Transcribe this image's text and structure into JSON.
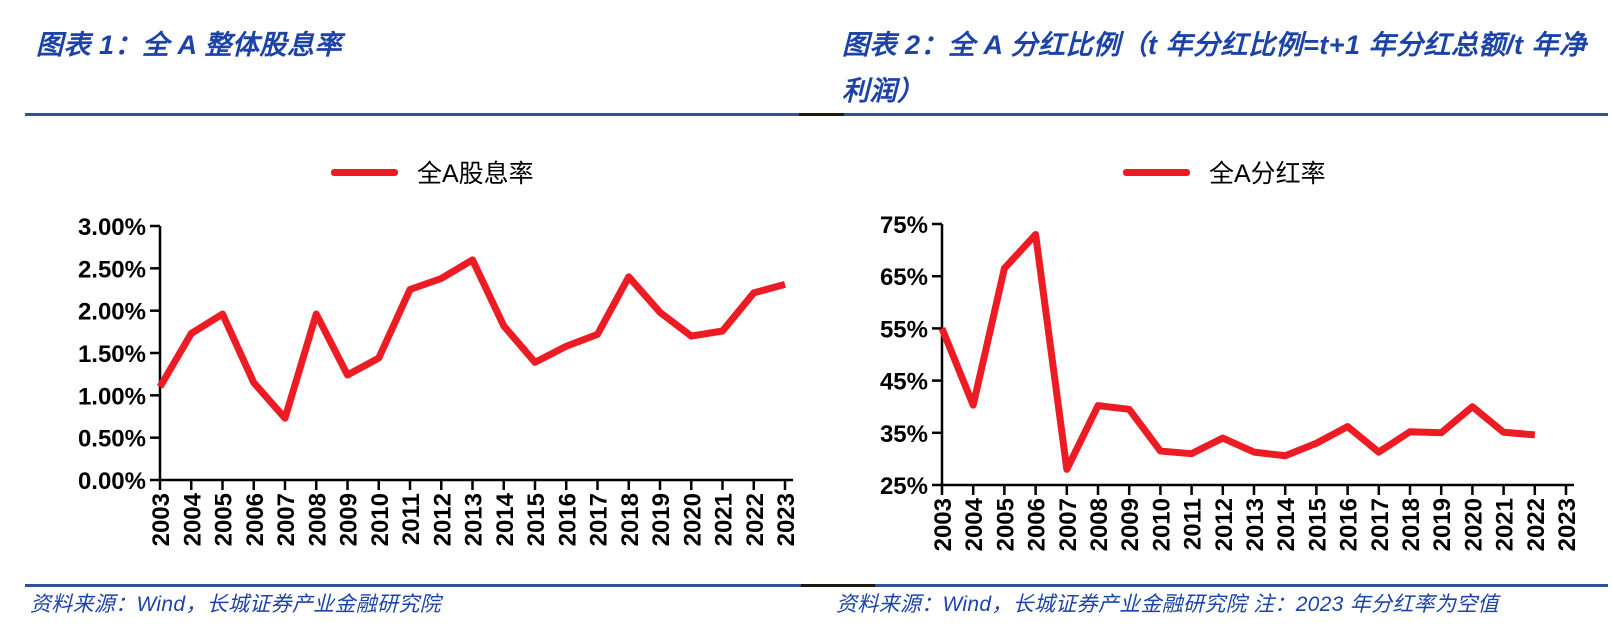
{
  "panels": [
    {
      "title": "图表 1：全 A 整体股息率",
      "source": "资料来源：Wind，长城证券产业金融研究院"
    },
    {
      "title": "图表 2：全 A 分红比例（t 年分红比例=t+1 年分红总额/t 年净利润）",
      "source": "资料来源：Wind，长城证券产业金融研究院 注：2023 年分红率为空值"
    }
  ],
  "colors": {
    "line_red": "#ED1C24",
    "accent_text_blue": "#1C43A8",
    "separator_blue": "#2E5496",
    "axis_black": "#000000"
  },
  "chart_data": [
    {
      "id": "all-a-dividend-yield",
      "type": "line",
      "legend": "全A股息率",
      "legend_position": "top-center",
      "grid": false,
      "line_color": "#ED1C24",
      "xlabel": "",
      "ylabel": "",
      "ylim": [
        0,
        3
      ],
      "yticks": [
        {
          "v": 3.0,
          "label": "3.00%"
        },
        {
          "v": 2.5,
          "label": "2.50%"
        },
        {
          "v": 2.0,
          "label": "2.00%"
        },
        {
          "v": 1.5,
          "label": "1.50%"
        },
        {
          "v": 1.0,
          "label": "1.00%"
        },
        {
          "v": 0.5,
          "label": "0.50%"
        },
        {
          "v": 0.0,
          "label": "0.00%"
        }
      ],
      "categories": [
        "2003",
        "2004",
        "2005",
        "2006",
        "2007",
        "2008",
        "2009",
        "2010",
        "2011",
        "2012",
        "2013",
        "2014",
        "2015",
        "2016",
        "2017",
        "2018",
        "2019",
        "2020",
        "2021",
        "2022",
        "2023"
      ],
      "values": [
        1.1,
        1.73,
        1.96,
        1.15,
        0.73,
        1.96,
        1.24,
        1.44,
        2.25,
        2.38,
        2.6,
        1.82,
        1.39,
        1.58,
        1.72,
        2.4,
        1.98,
        1.7,
        1.76,
        2.21,
        2.31
      ]
    },
    {
      "id": "all-a-payout-ratio",
      "type": "line",
      "legend": "全A分红率",
      "legend_position": "top-center",
      "grid": false,
      "line_color": "#ED1C24",
      "xlabel": "",
      "ylabel": "",
      "ylim": [
        25,
        75
      ],
      "yticks": [
        {
          "v": 75,
          "label": "75%"
        },
        {
          "v": 65,
          "label": "65%"
        },
        {
          "v": 55,
          "label": "55%"
        },
        {
          "v": 45,
          "label": "45%"
        },
        {
          "v": 35,
          "label": "35%"
        },
        {
          "v": 25,
          "label": "25%"
        }
      ],
      "categories": [
        "2003",
        "2004",
        "2005",
        "2006",
        "2007",
        "2008",
        "2009",
        "2010",
        "2011",
        "2012",
        "2013",
        "2014",
        "2015",
        "2016",
        "2017",
        "2018",
        "2019",
        "2020",
        "2021",
        "2022",
        "2023"
      ],
      "values": [
        55.0,
        40.3,
        66.5,
        73.0,
        28.0,
        40.2,
        39.5,
        31.5,
        31.0,
        34.0,
        31.3,
        30.6,
        33.0,
        36.2,
        31.3,
        35.2,
        35.0,
        40.0,
        35.1,
        34.6,
        null
      ]
    }
  ]
}
